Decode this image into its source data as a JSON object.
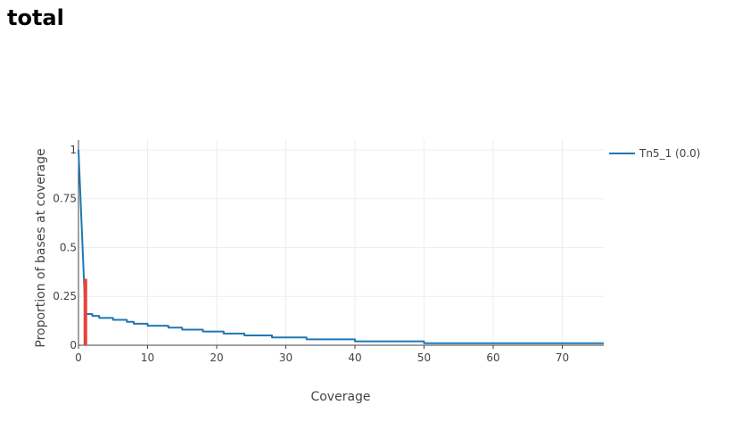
{
  "page": {
    "title": "total"
  },
  "chart_data": {
    "type": "line",
    "title": "",
    "xlabel": "Coverage",
    "ylabel": "Proportion of bases at coverage",
    "xlim": [
      0,
      76
    ],
    "ylim": [
      0,
      1.05
    ],
    "xticks": [
      0,
      10,
      20,
      30,
      40,
      50,
      60,
      70
    ],
    "yticks": [
      0,
      0.25,
      0.5,
      0.75,
      1
    ],
    "ytick_labels": [
      "0",
      "0.25",
      "0.5",
      "0.75",
      "1"
    ],
    "grid": true,
    "legend_position": "right",
    "series": [
      {
        "name": "Tn5_1 (0.0)",
        "color": "#1f77b4",
        "x": [
          0,
          1,
          2,
          3,
          4,
          5,
          6,
          7,
          8,
          9,
          10,
          11,
          12,
          13,
          14,
          15,
          16,
          17,
          18,
          19,
          20,
          21,
          22,
          23,
          24,
          25,
          26,
          27,
          28,
          29,
          30,
          31,
          32,
          33,
          34,
          35,
          36,
          37,
          38,
          39,
          40,
          41,
          42,
          43,
          44,
          45,
          46,
          47,
          48,
          49,
          50,
          55,
          60,
          65,
          70,
          76
        ],
        "y": [
          1.0,
          0.16,
          0.15,
          0.14,
          0.14,
          0.13,
          0.13,
          0.12,
          0.11,
          0.11,
          0.1,
          0.1,
          0.1,
          0.09,
          0.09,
          0.08,
          0.08,
          0.08,
          0.07,
          0.07,
          0.07,
          0.06,
          0.06,
          0.06,
          0.05,
          0.05,
          0.05,
          0.05,
          0.04,
          0.04,
          0.04,
          0.04,
          0.04,
          0.03,
          0.03,
          0.03,
          0.03,
          0.03,
          0.03,
          0.03,
          0.02,
          0.02,
          0.02,
          0.02,
          0.02,
          0.02,
          0.02,
          0.02,
          0.02,
          0.02,
          0.01,
          0.01,
          0.01,
          0.01,
          0.01,
          0.01
        ]
      }
    ],
    "marker": {
      "color": "#e8413c",
      "x": 1,
      "y": 0.34
    }
  }
}
